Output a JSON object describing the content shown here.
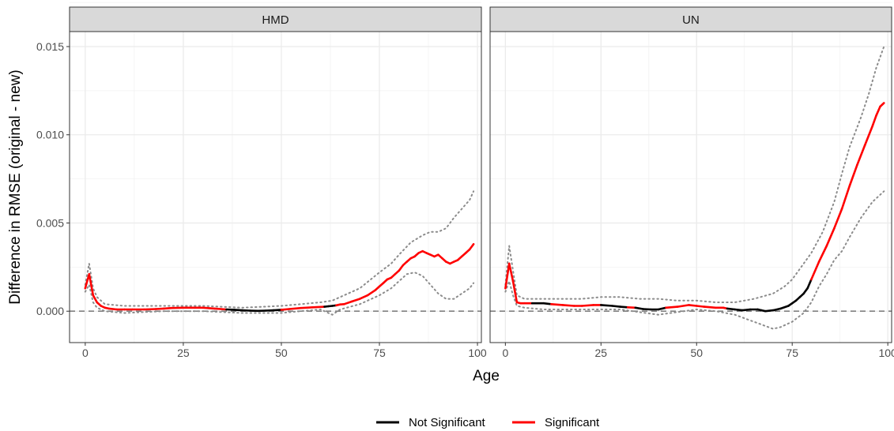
{
  "chart_data": {
    "type": "line",
    "xlabel": "Age",
    "ylabel": "Difference in RMSE (original - new)",
    "xlim": [
      -4,
      101
    ],
    "ylim": [
      -0.00178,
      0.01585
    ],
    "x_ticks": [
      0,
      25,
      50,
      75,
      100
    ],
    "x_tick_labels": [
      "0",
      "25",
      "50",
      "75",
      "100"
    ],
    "y_ticks": [
      0.0,
      0.005,
      0.01,
      0.015
    ],
    "y_tick_labels": [
      "0.000",
      "0.005",
      "0.010",
      "0.015"
    ],
    "grid": true,
    "reference_line": {
      "y": 0,
      "style": "dashed",
      "color": "#808080"
    },
    "legend": {
      "position": "bottom",
      "entries": [
        {
          "label": "Not Significant",
          "color": "#000000"
        },
        {
          "label": "Significant",
          "color": "#ff0000"
        }
      ]
    },
    "panels": [
      {
        "name": "HMD",
        "series": [
          {
            "role": "estimate",
            "x": [
              0,
              1,
              2,
              3,
              4,
              5,
              6,
              8,
              10,
              12,
              15,
              18,
              20,
              22,
              25,
              28,
              30,
              33,
              36,
              38,
              40,
              42,
              44,
              46,
              48,
              50,
              52,
              55,
              58,
              61,
              62,
              63,
              64,
              65,
              66,
              68,
              70,
              72,
              74,
              75,
              76,
              77,
              78,
              79,
              80,
              81,
              82,
              83,
              84,
              85,
              86,
              87,
              88,
              89,
              90,
              91,
              92,
              93,
              94,
              95,
              96,
              97,
              98,
              99
            ],
            "y": [
              0.0013,
              0.0021,
              0.0009,
              0.0005,
              0.0003,
              0.0002,
              0.00015,
              0.0001,
              0.0001,
              0.0001,
              0.0001,
              0.00012,
              0.00015,
              0.00018,
              0.0002,
              0.0002,
              0.0002,
              0.00015,
              0.0001,
              8e-05,
              5e-05,
              3e-05,
              2e-05,
              3e-05,
              5e-05,
              8e-05,
              0.00012,
              0.00018,
              0.00022,
              0.00025,
              0.00028,
              0.0003,
              0.00033,
              0.00038,
              0.0004,
              0.00055,
              0.0007,
              0.0009,
              0.0012,
              0.0014,
              0.0016,
              0.0018,
              0.0019,
              0.0021,
              0.0023,
              0.0026,
              0.0028,
              0.003,
              0.0031,
              0.0033,
              0.0034,
              0.0033,
              0.0032,
              0.0031,
              0.0032,
              0.003,
              0.0028,
              0.0027,
              0.0028,
              0.0029,
              0.0031,
              0.0033,
              0.0035,
              0.0038
            ],
            "significant": [
              true,
              true,
              true,
              true,
              true,
              true,
              true,
              true,
              true,
              true,
              true,
              true,
              true,
              true,
              true,
              true,
              true,
              true,
              true,
              false,
              false,
              false,
              false,
              false,
              false,
              true,
              true,
              true,
              true,
              true,
              false,
              false,
              true,
              true,
              true,
              true,
              true,
              true,
              true,
              true,
              true,
              true,
              true,
              true,
              true,
              true,
              true,
              true,
              true,
              true,
              true,
              true,
              true,
              true,
              true,
              true,
              true,
              true,
              true,
              true,
              true,
              true,
              true,
              true
            ]
          },
          {
            "role": "upper",
            "x": [
              0,
              1,
              2,
              3,
              5,
              10,
              20,
              30,
              40,
              50,
              55,
              60,
              63,
              65,
              70,
              75,
              78,
              80,
              83,
              86,
              88,
              90,
              92,
              94,
              96,
              98,
              99
            ],
            "y": [
              0.0015,
              0.0027,
              0.0013,
              0.0008,
              0.0004,
              0.0003,
              0.0003,
              0.0003,
              0.0002,
              0.0003,
              0.0004,
              0.0005,
              0.0006,
              0.0008,
              0.0013,
              0.0022,
              0.0027,
              0.0032,
              0.0039,
              0.0043,
              0.0045,
              0.0045,
              0.0047,
              0.0053,
              0.0058,
              0.0063,
              0.0068
            ]
          },
          {
            "role": "lower",
            "x": [
              0,
              1,
              2,
              3,
              5,
              10,
              20,
              30,
              40,
              50,
              55,
              60,
              63,
              65,
              70,
              75,
              78,
              80,
              82,
              84,
              86,
              88,
              90,
              92,
              94,
              96,
              98,
              99
            ],
            "y": [
              0.0011,
              0.0015,
              0.0005,
              0.0002,
              0.0,
              -0.0001,
              0.0,
              0.0,
              -0.0001,
              -0.0001,
              0.0,
              0.0001,
              -0.0002,
              0.0001,
              0.0004,
              0.0009,
              0.0013,
              0.0017,
              0.0021,
              0.0022,
              0.002,
              0.0015,
              0.001,
              0.0007,
              0.0007,
              0.001,
              0.0013,
              0.0016
            ]
          }
        ]
      },
      {
        "name": "UN",
        "series": [
          {
            "role": "estimate",
            "x": [
              0,
              1,
              2,
              3,
              4,
              5,
              7,
              10,
              12,
              15,
              18,
              20,
              23,
              25,
              28,
              30,
              32,
              34,
              36,
              38,
              40,
              42,
              45,
              48,
              50,
              52,
              55,
              57,
              58,
              60,
              62,
              64,
              66,
              67,
              68,
              70,
              72,
              74,
              75,
              76,
              77,
              78,
              79,
              80,
              82,
              84,
              86,
              88,
              90,
              92,
              94,
              96,
              97,
              98,
              99
            ],
            "y": [
              0.0013,
              0.0027,
              0.0017,
              0.0005,
              0.00045,
              0.00045,
              0.00045,
              0.00045,
              0.0004,
              0.00035,
              0.0003,
              0.0003,
              0.00035,
              0.00035,
              0.0003,
              0.00025,
              0.00022,
              0.0002,
              0.00012,
              0.0001,
              0.0001,
              0.0002,
              0.00025,
              0.00035,
              0.0003,
              0.00025,
              0.0002,
              0.0002,
              0.00015,
              0.0001,
              5e-05,
              0.0001,
              0.0001,
              5e-05,
              0.0,
              5e-05,
              0.00015,
              0.0003,
              0.00045,
              0.0006,
              0.0008,
              0.001,
              0.0013,
              0.0018,
              0.0028,
              0.0037,
              0.0047,
              0.0058,
              0.0071,
              0.0083,
              0.0094,
              0.0105,
              0.0111,
              0.0116,
              0.0118
            ],
            "significant": [
              true,
              true,
              true,
              true,
              true,
              true,
              true,
              false,
              true,
              true,
              true,
              true,
              true,
              true,
              false,
              false,
              true,
              true,
              false,
              false,
              false,
              true,
              true,
              true,
              true,
              true,
              true,
              true,
              true,
              false,
              false,
              false,
              false,
              false,
              false,
              false,
              false,
              false,
              false,
              false,
              false,
              false,
              false,
              true,
              true,
              true,
              true,
              true,
              true,
              true,
              true,
              true,
              true,
              true,
              true
            ]
          },
          {
            "role": "upper",
            "x": [
              0,
              1,
              2,
              3,
              5,
              10,
              20,
              25,
              30,
              35,
              40,
              45,
              50,
              55,
              60,
              65,
              70,
              73,
              75,
              77,
              80,
              83,
              86,
              88,
              90,
              93,
              95,
              97,
              99
            ],
            "y": [
              0.0015,
              0.0037,
              0.0023,
              0.0009,
              0.0007,
              0.0007,
              0.0007,
              0.0008,
              0.0008,
              0.0007,
              0.0007,
              0.0006,
              0.0006,
              0.0005,
              0.0005,
              0.0007,
              0.001,
              0.0014,
              0.0018,
              0.0024,
              0.0033,
              0.0045,
              0.0062,
              0.0078,
              0.0093,
              0.011,
              0.0123,
              0.0138,
              0.015
            ]
          },
          {
            "role": "lower",
            "x": [
              0,
              1,
              2,
              3,
              5,
              10,
              20,
              30,
              40,
              50,
              55,
              60,
              65,
              70,
              72,
              75,
              78,
              80,
              82,
              84,
              86,
              88,
              90,
              93,
              96,
              99
            ],
            "y": [
              0.0011,
              0.0017,
              0.0009,
              0.0003,
              0.0002,
              0.0001,
              0.0001,
              0.0001,
              -0.0002,
              0.0001,
              0.0,
              -0.0002,
              -0.0006,
              -0.001,
              -0.0009,
              -0.0006,
              -0.0001,
              0.0005,
              0.0014,
              0.0021,
              0.0029,
              0.0034,
              0.0042,
              0.0053,
              0.0062,
              0.0068
            ]
          }
        ]
      }
    ]
  }
}
